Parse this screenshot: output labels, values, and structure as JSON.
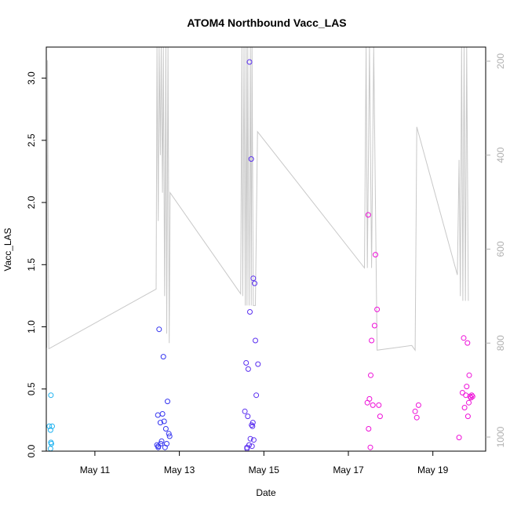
{
  "chart_data": {
    "type": "scatter",
    "title": "ATOM4 Northbound Vacc_LAS",
    "xlabel": "Date",
    "ylabel": "Vacc_LAS",
    "ylim": [
      0,
      3.25
    ],
    "yticks": [
      "0.0",
      "0.5",
      "1.0",
      "1.5",
      "2.0",
      "2.5",
      "3.0"
    ],
    "xlim_days": [
      9.85,
      20.25
    ],
    "xticks": [
      {
        "day": 11,
        "label": "May 11"
      },
      {
        "day": 13,
        "label": "May 13"
      },
      {
        "day": 15,
        "label": "May 15"
      },
      {
        "day": 17,
        "label": "May 17"
      },
      {
        "day": 19,
        "label": "May 19"
      }
    ],
    "y2_axis": {
      "reversed": true,
      "range": [
        170,
        1030
      ],
      "ticks": [
        "200",
        "400",
        "600",
        "800",
        "1000"
      ],
      "color": "#b0b0b0"
    },
    "grid": false,
    "colors": {
      "point_early": "#1fb2f0",
      "point_mid": "#3535f0",
      "point_late": "#ee10d8",
      "line": "#c8c8c8"
    },
    "series": [
      {
        "style": "points",
        "points": [
          [
            9.92,
            0.2
          ],
          [
            9.95,
            0.17
          ],
          [
            9.97,
            0.06
          ],
          [
            9.96,
            0.07
          ],
          [
            9.95,
            0.02
          ],
          [
            9.99,
            0.2
          ],
          [
            9.96,
            0.45
          ],
          [
            12.47,
            0.05
          ],
          [
            12.49,
            0.29
          ],
          [
            12.5,
            0.04
          ],
          [
            12.52,
            0.98
          ],
          [
            12.55,
            0.23
          ],
          [
            12.58,
            0.08
          ],
          [
            12.6,
            0.3
          ],
          [
            12.62,
            0.76
          ],
          [
            12.64,
            0.24
          ],
          [
            12.66,
            0.03
          ],
          [
            12.68,
            0.18
          ],
          [
            12.7,
            0.06
          ],
          [
            12.72,
            0.4
          ],
          [
            12.75,
            0.14
          ],
          [
            12.77,
            0.12
          ],
          [
            12.5,
            0.03
          ],
          [
            12.56,
            0.06
          ],
          [
            14.55,
            0.32
          ],
          [
            14.58,
            0.71
          ],
          [
            14.6,
            0.03
          ],
          [
            14.62,
            0.28
          ],
          [
            14.63,
            0.66
          ],
          [
            14.65,
            0.05
          ],
          [
            14.66,
            3.13
          ],
          [
            14.67,
            1.12
          ],
          [
            14.68,
            0.1
          ],
          [
            14.7,
            2.35
          ],
          [
            14.71,
            0.21
          ],
          [
            14.72,
            0.04
          ],
          [
            14.73,
            0.2
          ],
          [
            14.74,
            0.23
          ],
          [
            14.75,
            1.39
          ],
          [
            14.76,
            0.09
          ],
          [
            14.78,
            1.35
          ],
          [
            14.8,
            0.89
          ],
          [
            14.82,
            0.45
          ],
          [
            14.86,
            0.7
          ],
          [
            14.6,
            0.02
          ],
          [
            17.45,
            0.39
          ],
          [
            17.47,
            1.9
          ],
          [
            17.48,
            0.18
          ],
          [
            17.5,
            0.42
          ],
          [
            17.52,
            0.03
          ],
          [
            17.53,
            0.61
          ],
          [
            17.55,
            0.89
          ],
          [
            17.58,
            0.37
          ],
          [
            17.62,
            1.01
          ],
          [
            17.64,
            1.58
          ],
          [
            17.68,
            1.14
          ],
          [
            17.72,
            0.37
          ],
          [
            17.75,
            0.28
          ],
          [
            18.58,
            0.32
          ],
          [
            18.62,
            0.27
          ],
          [
            18.66,
            0.37
          ],
          [
            19.62,
            0.11
          ],
          [
            19.7,
            0.47
          ],
          [
            19.73,
            0.91
          ],
          [
            19.75,
            0.35
          ],
          [
            19.78,
            0.45
          ],
          [
            19.8,
            0.52
          ],
          [
            19.82,
            0.87
          ],
          [
            19.83,
            0.28
          ],
          [
            19.85,
            0.39
          ],
          [
            19.86,
            0.61
          ],
          [
            19.88,
            0.44
          ],
          [
            19.9,
            0.43
          ],
          [
            19.92,
            0.45
          ],
          [
            19.94,
            0.44
          ]
        ]
      },
      {
        "style": "line",
        "axis": "right",
        "points": [
          [
            9.86,
            810
          ],
          [
            9.88,
            198
          ],
          [
            9.91,
            812
          ],
          [
            12.45,
            685
          ],
          [
            12.47,
            170
          ],
          [
            12.5,
            540
          ],
          [
            12.52,
            170
          ],
          [
            12.55,
            400
          ],
          [
            12.57,
            170
          ],
          [
            12.6,
            480
          ],
          [
            12.62,
            170
          ],
          [
            12.65,
            700
          ],
          [
            12.68,
            170
          ],
          [
            12.7,
            780
          ],
          [
            12.73,
            170
          ],
          [
            12.76,
            800
          ],
          [
            12.78,
            480
          ],
          [
            14.45,
            695
          ],
          [
            14.48,
            170
          ],
          [
            14.5,
            700
          ],
          [
            14.53,
            170
          ],
          [
            14.56,
            720
          ],
          [
            14.58,
            170
          ],
          [
            14.6,
            720
          ],
          [
            14.62,
            170
          ],
          [
            14.65,
            720
          ],
          [
            14.68,
            170
          ],
          [
            14.7,
            720
          ],
          [
            14.72,
            170
          ],
          [
            14.75,
            720
          ],
          [
            14.8,
            720
          ],
          [
            14.85,
            350
          ],
          [
            17.38,
            640
          ],
          [
            17.42,
            170
          ],
          [
            17.45,
            640
          ],
          [
            17.5,
            170
          ],
          [
            17.55,
            640
          ],
          [
            17.6,
            170
          ],
          [
            17.68,
            815
          ],
          [
            18.5,
            805
          ],
          [
            18.58,
            815
          ],
          [
            18.62,
            340
          ],
          [
            19.58,
            655
          ],
          [
            19.62,
            410
          ],
          [
            19.65,
            700
          ],
          [
            19.68,
            170
          ],
          [
            19.71,
            710
          ],
          [
            19.74,
            170
          ],
          [
            19.77,
            710
          ],
          [
            19.8,
            170
          ],
          [
            19.84,
            710
          ]
        ]
      }
    ]
  }
}
